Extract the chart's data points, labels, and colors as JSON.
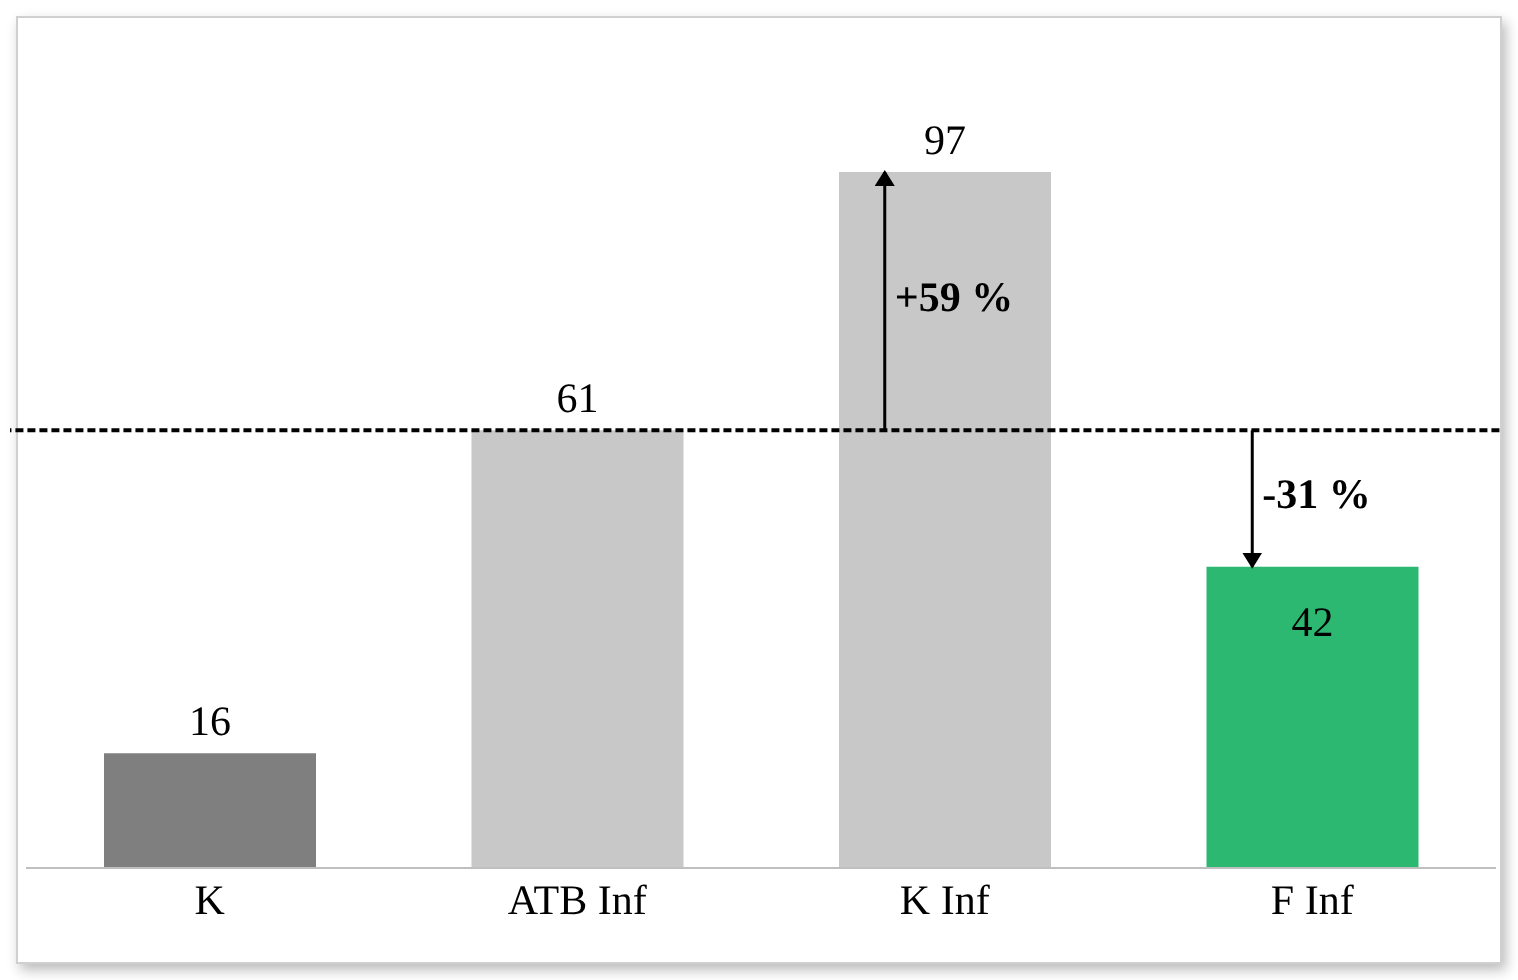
{
  "chart_data": {
    "type": "bar",
    "categories": [
      "K",
      "ATB Inf",
      "K Inf",
      "F Inf"
    ],
    "values": [
      16,
      61,
      97,
      42
    ],
    "colors": [
      "#7f7f7f",
      "#c8c8c8",
      "#c8c8c8",
      "#2db872"
    ],
    "data_labels": true,
    "grid": false,
    "legend": false,
    "tick_labels": "x",
    "ref_lines": [
      {
        "axis": "y",
        "value": 61,
        "color": "#000000",
        "line_style": "dashed"
      }
    ],
    "annotations": [
      {
        "text": "+59 %",
        "x": "K Inf",
        "y": 97
      },
      {
        "text": "-31 %",
        "x": "F Inf",
        "y": 42
      }
    ]
  }
}
